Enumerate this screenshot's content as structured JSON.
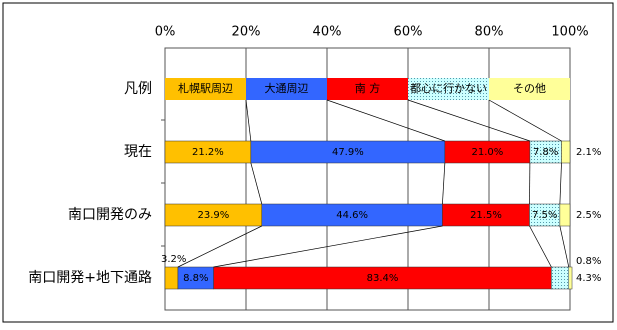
{
  "chart_data": {
    "type": "stacked-bar-horizontal",
    "legend_label": "凡例",
    "categories": [
      "現在",
      "南口開発のみ",
      "南口開発+地下通路"
    ],
    "series": [
      {
        "name": "札幌駅周辺",
        "color": "#FFC000",
        "values": [
          21.2,
          23.9,
          3.2
        ],
        "value_labels": [
          "21.2%",
          "23.9%",
          "3.2%"
        ]
      },
      {
        "name": "大通周辺",
        "color": "#3366FF",
        "values": [
          47.9,
          44.6,
          8.8
        ],
        "value_labels": [
          "47.9%",
          "44.6%",
          "8.8%"
        ]
      },
      {
        "name": "南 方",
        "color": "#FF0000",
        "values": [
          21.0,
          21.5,
          83.4
        ],
        "value_labels": [
          "21.0%",
          "21.5%",
          "83.4%"
        ]
      },
      {
        "name": "都心に行かない",
        "color": "#CCFFFF",
        "values": [
          7.8,
          7.5,
          4.3
        ],
        "value_labels": [
          "7.8%",
          "7.5%",
          "4.3%"
        ]
      },
      {
        "name": "その他",
        "color": "#FFFF99",
        "values": [
          2.1,
          2.5,
          0.8
        ],
        "value_labels": [
          "2.1%",
          "2.5%",
          "0.8%"
        ]
      }
    ],
    "xlim": [
      0,
      100
    ],
    "xticks": [
      {
        "value": 0,
        "label": "0%"
      },
      {
        "value": 20,
        "label": "20%"
      },
      {
        "value": 40,
        "label": "40%"
      },
      {
        "value": 60,
        "label": "60%"
      },
      {
        "value": 80,
        "label": "80%"
      },
      {
        "value": 100,
        "label": "100%"
      }
    ],
    "grid": true
  }
}
